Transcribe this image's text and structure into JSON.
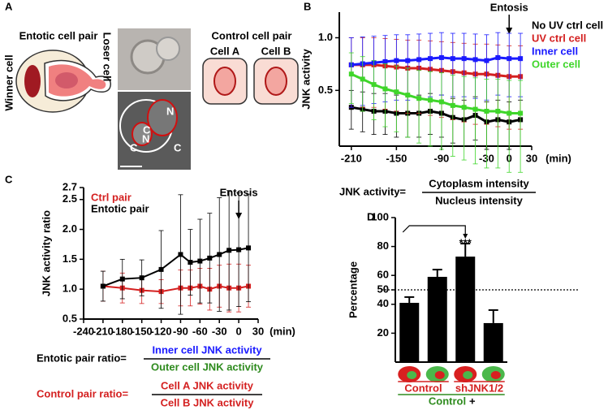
{
  "panel_labels": [
    "A",
    "B",
    "C",
    "D"
  ],
  "panel_a": {
    "entotic_title": "Entotic cell pair",
    "winner": "Winner cell",
    "loser": "Loser cell",
    "control_title": "Control cell pair",
    "cell_a": "Cell A",
    "cell_b": "Cell B",
    "image_labels": [
      "N",
      "C",
      "N",
      "C",
      "C"
    ]
  },
  "chart_data": [
    {
      "type": "line",
      "ylabel": "JNK activity",
      "annotation": "Entosis",
      "x_unit": "(min)",
      "log_scale": true,
      "x": [
        -210,
        -195,
        -180,
        -165,
        -150,
        -135,
        -120,
        -105,
        -90,
        -75,
        -60,
        -45,
        -30,
        -15,
        0,
        15
      ],
      "xlim": [
        -226,
        30
      ],
      "xticks": [
        -210,
        -150,
        -90,
        -30,
        0,
        30
      ],
      "ylim": [
        0.24,
        1.4
      ],
      "yticks": [
        0.5,
        {
          "value": 1,
          "label": "1.0"
        }
      ],
      "series": [
        {
          "name": "No UV ctrl cell",
          "color": "#000000",
          "values": [
            0.4,
            0.39,
            0.38,
            0.38,
            0.37,
            0.37,
            0.37,
            0.38,
            0.37,
            0.35,
            0.34,
            0.36,
            0.33,
            0.34,
            0.33,
            0.34
          ],
          "errors": [
            0.1,
            0.1,
            0.1,
            0.1,
            0.1,
            0.1,
            0.1,
            0.1,
            0.1,
            0.1,
            0.1,
            0.1,
            0.1,
            0.1,
            0.1,
            0.1
          ]
        },
        {
          "name": "UV ctrl cell",
          "color": "#d42020",
          "values": [
            0.7,
            0.7,
            0.7,
            0.69,
            0.68,
            0.67,
            0.67,
            0.66,
            0.65,
            0.64,
            0.63,
            0.62,
            0.62,
            0.61,
            0.6,
            0.6
          ],
          "errors": [
            0.3,
            0.3,
            0.3,
            0.3,
            0.3,
            0.3,
            0.3,
            0.3,
            0.3,
            0.3,
            0.3,
            0.3,
            0.3,
            0.3,
            0.3,
            0.3
          ]
        },
        {
          "name": "Inner cell",
          "color": "#1a1aff",
          "values": [
            0.7,
            0.71,
            0.72,
            0.73,
            0.74,
            0.74,
            0.75,
            0.76,
            0.77,
            0.76,
            0.76,
            0.75,
            0.74,
            0.77,
            0.76,
            0.76
          ],
          "errors": [
            0.3,
            0.3,
            0.3,
            0.3,
            0.3,
            0.3,
            0.3,
            0.3,
            0.3,
            0.3,
            0.3,
            0.3,
            0.3,
            0.3,
            0.3,
            0.3
          ]
        },
        {
          "name": "Outer cell",
          "color": "#3fd62a",
          "values": [
            0.62,
            0.58,
            0.54,
            0.51,
            0.49,
            0.47,
            0.45,
            0.44,
            0.43,
            0.41,
            0.4,
            0.39,
            0.38,
            0.38,
            0.37,
            0.37
          ],
          "errors": [
            0.2,
            0.2,
            0.2,
            0.2,
            0.2,
            0.2,
            0.2,
            0.2,
            0.2,
            0.2,
            0.2,
            0.2,
            0.2,
            0.2,
            0.2,
            0.2
          ]
        }
      ],
      "formula": {
        "lhs": "JNK activity=",
        "numerator": "Cytoplasm intensity",
        "denominator": "Nucleus intensity"
      }
    },
    {
      "type": "line",
      "ylabel": "JNK activity ratio",
      "annotation": "Entosis",
      "x_unit": "(min)",
      "log_scale": false,
      "x": [
        -210,
        -180,
        -150,
        -120,
        -90,
        -75,
        -60,
        -45,
        -30,
        -15,
        0,
        15
      ],
      "xlim": [
        -240,
        30
      ],
      "xticks": [
        -240,
        -210,
        -180,
        -150,
        -120,
        -90,
        -60,
        -30,
        0,
        30
      ],
      "ylim": [
        0.5,
        2.7
      ],
      "yticks": [
        0.5,
        {
          "value": 1,
          "label": "1.0"
        },
        1.5,
        {
          "value": 2,
          "label": "2.0"
        },
        2.5,
        2.7
      ],
      "series": [
        {
          "name": "Ctrl pair",
          "color": "#d42020",
          "values": [
            1.05,
            1.02,
            0.98,
            0.96,
            1.02,
            1.02,
            1.05,
            1.0,
            1.05,
            1.02,
            1.02,
            1.05
          ],
          "errors": [
            0.25,
            0.25,
            0.22,
            0.2,
            0.3,
            0.3,
            0.3,
            0.35,
            0.35,
            0.4,
            0.4,
            0.35
          ]
        },
        {
          "name": "Entotic pair",
          "color": "#000000",
          "values": [
            1.05,
            1.17,
            1.19,
            1.33,
            1.58,
            1.45,
            1.47,
            1.52,
            1.58,
            1.65,
            1.66,
            1.69
          ],
          "errors": [
            0.25,
            0.33,
            0.3,
            0.65,
            1.0,
            0.55,
            0.7,
            0.75,
            0.95,
            1.0,
            0.95,
            0.9
          ]
        }
      ],
      "formulas": [
        {
          "lhs": "Entotic pair ratio=",
          "numerator": "Inner cell JNK activity",
          "denominator": "Outer cell JNK activity"
        },
        {
          "lhs": "Control pair ratio=",
          "numerator": "Cell A JNK activity",
          "denominator": "Cell B JNK activity"
        }
      ]
    },
    {
      "type": "bar",
      "ylabel": "Percentage",
      "categories": [
        null,
        null,
        null,
        null
      ],
      "values": [
        41,
        59,
        73,
        27
      ],
      "errors": [
        4,
        5,
        9,
        9
      ],
      "color": "#000000",
      "ylim": [
        0,
        100
      ],
      "yticks": [
        20,
        40,
        50,
        60,
        80,
        100
      ],
      "reference_line": 50,
      "annotation": "***",
      "group_labels": [
        "Control",
        "shJNK1/2"
      ],
      "bottom_label": "Control",
      "bottom_suffix": "+"
    }
  ]
}
